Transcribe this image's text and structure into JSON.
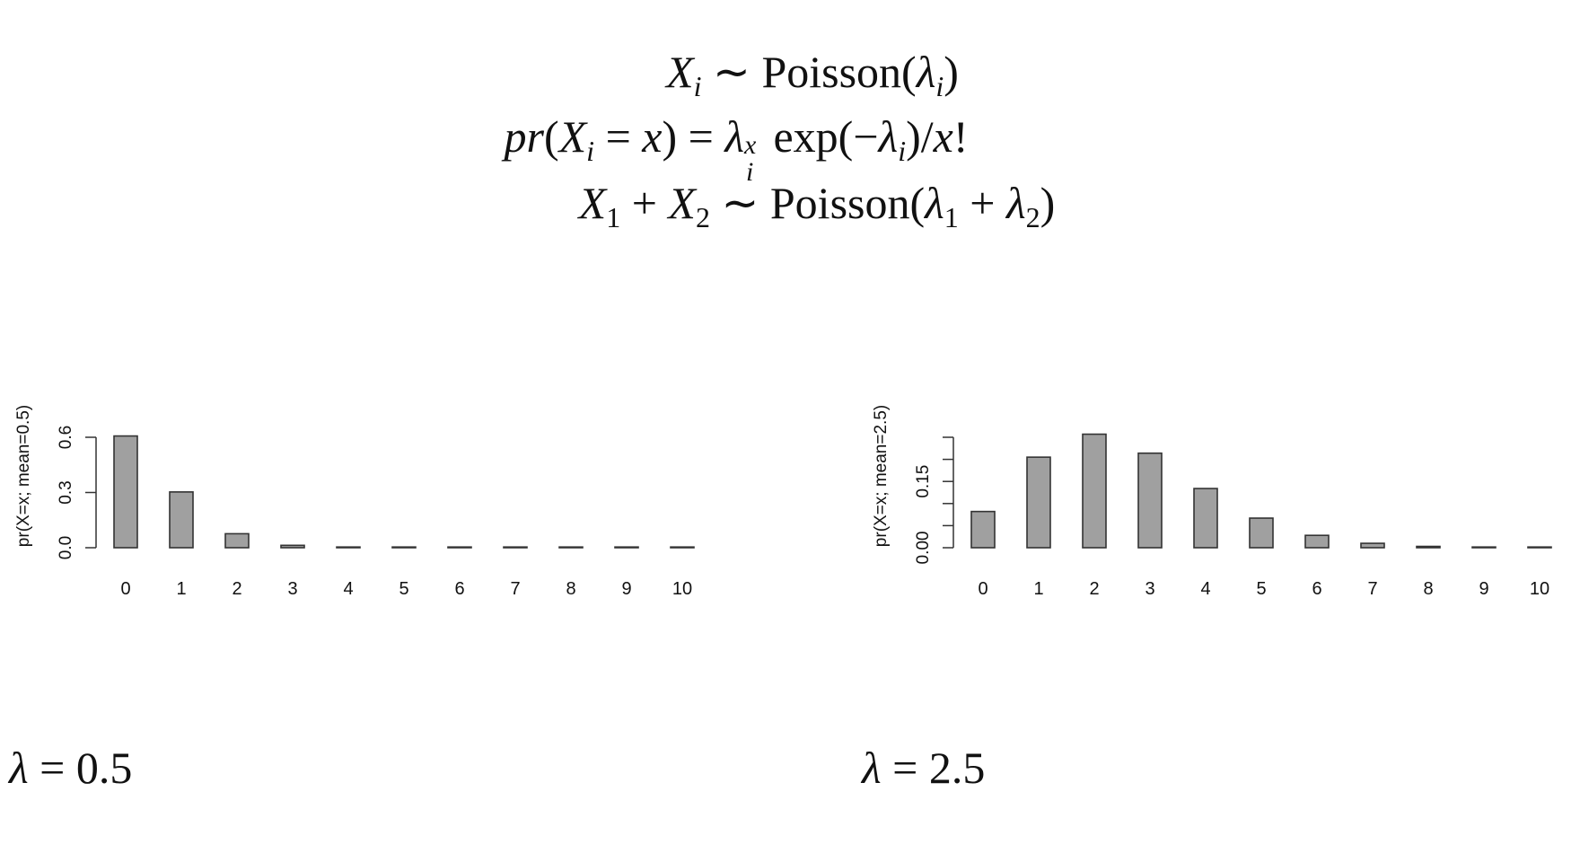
{
  "equations": {
    "line1": {
      "x": "X",
      "i": "i",
      "rel": "∼",
      "fn": "Poisson(",
      "lam": "λ",
      "close": ")"
    },
    "line2": {
      "pr": "pr",
      "open": "(",
      "x": "X",
      "i": "i",
      "eq": " = ",
      "xv": "x",
      "close": ")",
      "eq2": " = ",
      "lam": "λ",
      "supx": "x",
      "subi": "i",
      "exp": " exp(−",
      "lam2": "λ",
      "tail": ")/",
      "xv2": "x",
      "bang": "!"
    },
    "line3": {
      "x1": "X",
      "one": "1",
      "plus": " + ",
      "x2": "X",
      "two": "2",
      "rel": "∼",
      "fn": "Poisson(",
      "lam1": "λ",
      "s1": "1",
      "plus2": " + ",
      "lam2": "λ",
      "s2": "2",
      "close": ")"
    }
  },
  "captions": {
    "left": {
      "lam": "λ",
      "rest": " = 0.5"
    },
    "right": {
      "lam": "λ",
      "rest": " = 2.5"
    }
  },
  "chart_data": [
    {
      "type": "bar",
      "categories": [
        "0",
        "1",
        "2",
        "3",
        "4",
        "5",
        "6",
        "7",
        "8",
        "9",
        "10"
      ],
      "values": [
        0.607,
        0.303,
        0.076,
        0.013,
        0.002,
        0.0002,
        0.0,
        0.0,
        0.0,
        0.0,
        0.0
      ],
      "ylabel": "pr(X=x; mean=0.5)",
      "yticks": [
        "0.0",
        "0.3",
        "0.6"
      ],
      "ytick_values": [
        0.0,
        0.3,
        0.6
      ],
      "ylim": [
        0,
        0.6
      ],
      "grid": false,
      "bar_color": "#a0a0a0",
      "edge_color": "#333333"
    },
    {
      "type": "bar",
      "categories": [
        "0",
        "1",
        "2",
        "3",
        "4",
        "5",
        "6",
        "7",
        "8",
        "9",
        "10"
      ],
      "values": [
        0.082,
        0.205,
        0.257,
        0.214,
        0.134,
        0.067,
        0.028,
        0.01,
        0.003,
        0.001,
        0.0002
      ],
      "ylabel": "pr(X=x; mean=2.5)",
      "yticks": [
        "0.00",
        "0.15"
      ],
      "ytick_values": [
        0.0,
        0.05,
        0.1,
        0.15,
        0.2,
        0.25
      ],
      "ytick_label_values": [
        0.0,
        0.15
      ],
      "ylim": [
        0,
        0.25
      ],
      "grid": false,
      "bar_color": "#a0a0a0",
      "edge_color": "#333333"
    }
  ]
}
